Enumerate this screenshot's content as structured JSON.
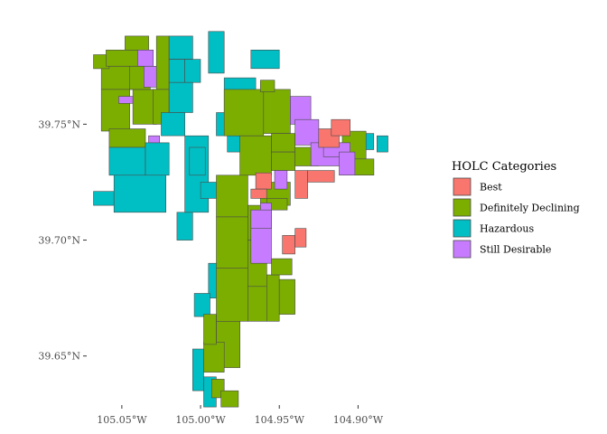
{
  "colors": {
    "Best": "#F8766D",
    "Definitely Declining": "#7CAE00",
    "Hazardous": "#00BFC4",
    "Still Desirable": "#C77CFF",
    "border": "#4a4a4a",
    "tick": "#333333"
  },
  "legend": {
    "title": "HOLC Categories",
    "placement": "right",
    "items": [
      {
        "label": "Best",
        "category": "Best"
      },
      {
        "label": "Definitely Declining",
        "category": "Definitely Declining"
      },
      {
        "label": "Hazardous",
        "category": "Hazardous"
      },
      {
        "label": "Still Desirable",
        "category": "Still Desirable"
      }
    ]
  },
  "axes": {
    "x_ticks": [
      {
        "label": "105.05°W",
        "value": -105.05
      },
      {
        "label": "105.00°W",
        "value": -105.0
      },
      {
        "label": "104.95°W",
        "value": -104.95
      },
      {
        "label": "104.90°W",
        "value": -104.9
      }
    ],
    "y_ticks": [
      {
        "label": "39.75°N",
        "value": 39.75
      },
      {
        "label": "39.70°N",
        "value": 39.7
      },
      {
        "label": "39.65°N",
        "value": 39.65
      }
    ],
    "xlim": [
      -105.07,
      -104.875
    ],
    "ylim": [
      39.63,
      39.795
    ]
  },
  "zones": [
    {
      "c": "Definitely Declining",
      "b": [
        -105.063,
        39.765,
        -105.043,
        39.775
      ]
    },
    {
      "c": "Definitely Declining",
      "b": [
        -105.063,
        39.747,
        -105.045,
        39.765
      ]
    },
    {
      "c": "Definitely Declining",
      "b": [
        -105.068,
        39.774,
        -105.058,
        39.78
      ]
    },
    {
      "c": "Definitely Declining",
      "b": [
        -105.06,
        39.775,
        -105.04,
        39.782
      ]
    },
    {
      "c": "Definitely Declining",
      "b": [
        -105.048,
        39.782,
        -105.033,
        39.788
      ]
    },
    {
      "c": "Definitely Declining",
      "b": [
        -105.043,
        39.75,
        -105.028,
        39.765
      ]
    },
    {
      "c": "Definitely Declining",
      "b": [
        -105.058,
        39.74,
        -105.035,
        39.748
      ]
    },
    {
      "c": "Definitely Declining",
      "b": [
        -105.045,
        39.765,
        -105.032,
        39.775
      ]
    },
    {
      "c": "Definitely Declining",
      "b": [
        -105.028,
        39.765,
        -105.02,
        39.788
      ]
    },
    {
      "c": "Definitely Declining",
      "b": [
        -105.03,
        39.75,
        -105.02,
        39.765
      ]
    },
    {
      "c": "Still Desirable",
      "b": [
        -105.04,
        39.775,
        -105.03,
        39.782
      ]
    },
    {
      "c": "Still Desirable",
      "b": [
        -105.036,
        39.766,
        -105.028,
        39.775
      ]
    },
    {
      "c": "Still Desirable",
      "b": [
        -105.052,
        39.759,
        -105.043,
        39.762
      ]
    },
    {
      "c": "Still Desirable",
      "b": [
        -105.033,
        39.741,
        -105.026,
        39.745
      ]
    },
    {
      "c": "Hazardous",
      "b": [
        -105.058,
        39.728,
        -105.035,
        39.74
      ]
    },
    {
      "c": "Hazardous",
      "b": [
        -105.035,
        39.728,
        -105.02,
        39.742
      ]
    },
    {
      "c": "Hazardous",
      "b": [
        -105.068,
        39.715,
        -105.055,
        39.721
      ]
    },
    {
      "c": "Hazardous",
      "b": [
        -105.055,
        39.712,
        -105.022,
        39.728
      ]
    },
    {
      "c": "Hazardous",
      "b": [
        -105.015,
        39.7,
        -105.005,
        39.712
      ]
    },
    {
      "c": "Hazardous",
      "b": [
        -105.01,
        39.712,
        -104.995,
        39.745
      ]
    },
    {
      "c": "Hazardous",
      "b": [
        -105.007,
        39.728,
        -104.997,
        39.74
      ]
    },
    {
      "c": "Hazardous",
      "b": [
        -105.0,
        39.718,
        -104.988,
        39.725
      ]
    },
    {
      "c": "Hazardous",
      "b": [
        -105.02,
        39.778,
        -105.005,
        39.788
      ]
    },
    {
      "c": "Hazardous",
      "b": [
        -105.02,
        39.768,
        -105.01,
        39.778
      ]
    },
    {
      "c": "Hazardous",
      "b": [
        -105.01,
        39.768,
        -105.0,
        39.778
      ]
    },
    {
      "c": "Hazardous",
      "b": [
        -105.02,
        39.755,
        -105.005,
        39.768
      ]
    },
    {
      "c": "Hazardous",
      "b": [
        -105.025,
        39.745,
        -105.01,
        39.755
      ]
    },
    {
      "c": "Hazardous",
      "b": [
        -104.995,
        39.772,
        -104.985,
        39.79
      ]
    },
    {
      "c": "Hazardous",
      "b": [
        -104.968,
        39.774,
        -104.95,
        39.782
      ]
    },
    {
      "c": "Hazardous",
      "b": [
        -104.985,
        39.752,
        -104.965,
        39.77
      ]
    },
    {
      "c": "Hazardous",
      "b": [
        -104.99,
        39.745,
        -104.978,
        39.755
      ]
    },
    {
      "c": "Hazardous",
      "b": [
        -104.983,
        39.738,
        -104.97,
        39.746
      ]
    },
    {
      "c": "Hazardous",
      "b": [
        -104.897,
        39.739,
        -104.89,
        39.746
      ]
    },
    {
      "c": "Hazardous",
      "b": [
        -104.888,
        39.738,
        -104.881,
        39.745
      ]
    },
    {
      "c": "Hazardous",
      "b": [
        -104.995,
        39.675,
        -104.988,
        39.69
      ]
    },
    {
      "c": "Hazardous",
      "b": [
        -105.004,
        39.667,
        -104.994,
        39.677
      ]
    },
    {
      "c": "Hazardous",
      "b": [
        -104.993,
        39.648,
        -104.983,
        39.655
      ]
    },
    {
      "c": "Hazardous",
      "b": [
        -105.005,
        39.635,
        -104.998,
        39.653
      ]
    },
    {
      "c": "Hazardous",
      "b": [
        -104.998,
        39.628,
        -104.99,
        39.641
      ]
    },
    {
      "c": "Definitely Declining",
      "b": [
        -104.985,
        39.745,
        -104.96,
        39.765
      ]
    },
    {
      "c": "Definitely Declining",
      "b": [
        -104.975,
        39.728,
        -104.955,
        39.745
      ]
    },
    {
      "c": "Definitely Declining",
      "b": [
        -104.96,
        39.746,
        -104.943,
        39.765
      ]
    },
    {
      "c": "Definitely Declining",
      "b": [
        -104.962,
        39.764,
        -104.953,
        39.769
      ]
    },
    {
      "c": "Definitely Declining",
      "b": [
        -104.955,
        39.738,
        -104.94,
        39.746
      ]
    },
    {
      "c": "Definitely Declining",
      "b": [
        -104.955,
        39.73,
        -104.94,
        39.738
      ]
    },
    {
      "c": "Definitely Declining",
      "b": [
        -104.94,
        39.732,
        -104.925,
        39.74
      ]
    },
    {
      "c": "Definitely Declining",
      "b": [
        -104.91,
        39.735,
        -104.895,
        39.747
      ]
    },
    {
      "c": "Definitely Declining",
      "b": [
        -104.905,
        39.728,
        -104.89,
        39.735
      ]
    },
    {
      "c": "Definitely Declining",
      "b": [
        -104.99,
        39.71,
        -104.97,
        39.728
      ]
    },
    {
      "c": "Definitely Declining",
      "b": [
        -104.99,
        39.688,
        -104.97,
        39.71
      ]
    },
    {
      "c": "Definitely Declining",
      "b": [
        -104.99,
        39.665,
        -104.97,
        39.688
      ]
    },
    {
      "c": "Definitely Declining",
      "b": [
        -104.99,
        39.645,
        -104.975,
        39.665
      ]
    },
    {
      "c": "Definitely Declining",
      "b": [
        -104.97,
        39.7,
        -104.96,
        39.715
      ]
    },
    {
      "c": "Definitely Declining",
      "b": [
        -104.97,
        39.68,
        -104.958,
        39.7
      ]
    },
    {
      "c": "Definitely Declining",
      "b": [
        -104.97,
        39.665,
        -104.958,
        39.68
      ]
    },
    {
      "c": "Definitely Declining",
      "b": [
        -104.958,
        39.665,
        -104.95,
        39.685
      ]
    },
    {
      "c": "Definitely Declining",
      "b": [
        -104.95,
        39.668,
        -104.94,
        39.683
      ]
    },
    {
      "c": "Definitely Declining",
      "b": [
        -104.955,
        39.685,
        -104.942,
        39.692
      ]
    },
    {
      "c": "Definitely Declining",
      "b": [
        -104.962,
        39.715,
        -104.943,
        39.725
      ]
    },
    {
      "c": "Definitely Declining",
      "b": [
        -104.958,
        39.713,
        -104.945,
        39.718
      ]
    },
    {
      "c": "Definitely Declining",
      "b": [
        -104.998,
        39.643,
        -104.985,
        39.656
      ]
    },
    {
      "c": "Definitely Declining",
      "b": [
        -104.998,
        39.655,
        -104.99,
        39.668
      ]
    },
    {
      "c": "Definitely Declining",
      "b": [
        -104.993,
        39.632,
        -104.985,
        39.64
      ]
    },
    {
      "c": "Definitely Declining",
      "b": [
        -104.987,
        39.628,
        -104.976,
        39.635
      ]
    },
    {
      "c": "Still Desirable",
      "b": [
        -104.943,
        39.75,
        -104.93,
        39.762
      ]
    },
    {
      "c": "Still Desirable",
      "b": [
        -104.94,
        39.741,
        -104.925,
        39.752
      ]
    },
    {
      "c": "Still Desirable",
      "b": [
        -104.93,
        39.732,
        -104.91,
        39.742
      ]
    },
    {
      "c": "Still Desirable",
      "b": [
        -104.922,
        39.736,
        -104.905,
        39.742
      ]
    },
    {
      "c": "Still Desirable",
      "b": [
        -104.912,
        39.728,
        -104.902,
        39.738
      ]
    },
    {
      "c": "Still Desirable",
      "b": [
        -104.962,
        39.71,
        -104.955,
        39.716
      ]
    },
    {
      "c": "Still Desirable",
      "b": [
        -104.953,
        39.722,
        -104.945,
        39.73
      ]
    },
    {
      "c": "Still Desirable",
      "b": [
        -104.968,
        39.69,
        -104.955,
        39.71
      ]
    },
    {
      "c": "Still Desirable",
      "b": [
        -104.968,
        39.705,
        -104.955,
        39.713
      ]
    },
    {
      "c": "Best",
      "b": [
        -104.925,
        39.74,
        -104.912,
        39.748
      ]
    },
    {
      "c": "Best",
      "b": [
        -104.917,
        39.745,
        -104.905,
        39.752
      ]
    },
    {
      "c": "Best",
      "b": [
        -104.94,
        39.718,
        -104.932,
        39.73
      ]
    },
    {
      "c": "Best",
      "b": [
        -104.932,
        39.725,
        -104.915,
        39.73
      ]
    },
    {
      "c": "Best",
      "b": [
        -104.965,
        39.722,
        -104.955,
        39.729
      ]
    },
    {
      "c": "Best",
      "b": [
        -104.968,
        39.718,
        -104.958,
        39.722
      ]
    },
    {
      "c": "Best",
      "b": [
        -104.948,
        39.694,
        -104.94,
        39.702
      ]
    },
    {
      "c": "Best",
      "b": [
        -104.94,
        39.697,
        -104.933,
        39.705
      ]
    }
  ]
}
